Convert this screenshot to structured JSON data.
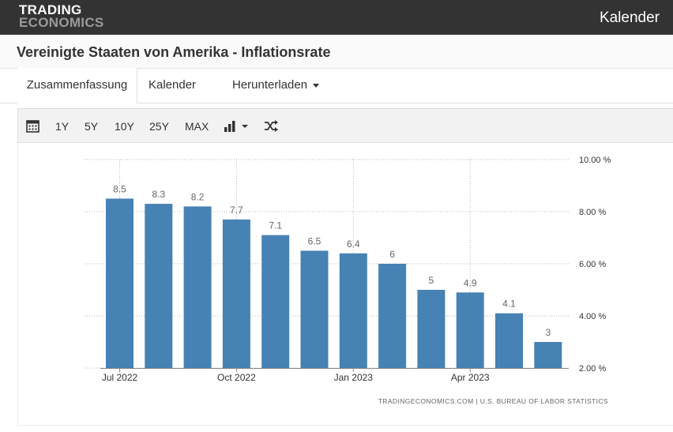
{
  "header": {
    "logo_line1": "TRADING",
    "logo_line2": "ECONOMICS",
    "calendar_link": "Kalender"
  },
  "page": {
    "title": "Vereinigte Staaten von Amerika - Inflationsrate"
  },
  "tabs": [
    {
      "label": "Zusammenfassung"
    },
    {
      "label": "Kalender"
    },
    {
      "label": "Herunterladen"
    }
  ],
  "toolbar": {
    "ranges": [
      "1Y",
      "5Y",
      "10Y",
      "25Y",
      "MAX"
    ],
    "icons": [
      "calendar-icon",
      "bar-chart-icon",
      "shuffle-icon"
    ]
  },
  "chart_data": {
    "type": "bar",
    "categories": [
      "Jul 2022",
      "Aug 2022",
      "Sep 2022",
      "Oct 2022",
      "Nov 2022",
      "Dec 2022",
      "Jan 2023",
      "Feb 2023",
      "Mar 2023",
      "Apr 2023",
      "May 2023",
      "Jun 2023"
    ],
    "values": [
      8.5,
      8.3,
      8.2,
      7.7,
      7.1,
      6.5,
      6.4,
      6,
      5,
      4.9,
      4.1,
      3
    ],
    "value_labels": [
      "8.5",
      "8.3",
      "8.2",
      "7.7",
      "7.1",
      "6.5",
      "6.4",
      "6",
      "5",
      "4.9",
      "4.1",
      "3"
    ],
    "x_tick_labels": [
      {
        "index": 0,
        "label": "Jul 2022"
      },
      {
        "index": 3,
        "label": "Oct 2022"
      },
      {
        "index": 6,
        "label": "Jan 2023"
      },
      {
        "index": 9,
        "label": "Apr 2023"
      }
    ],
    "y_ticks": [
      2,
      4,
      6,
      8,
      10
    ],
    "y_tick_labels": [
      "2.00 %",
      "4.00 %",
      "6.00 %",
      "8.00 %",
      "10.00 %"
    ],
    "ylim": [
      2,
      10
    ],
    "y_axis_side": "right",
    "grid": "dotted",
    "bar_color": "#4682b4",
    "source": "TRADINGECONOMICS.COM | U.S. BUREAU OF LABOR STATISTICS"
  }
}
